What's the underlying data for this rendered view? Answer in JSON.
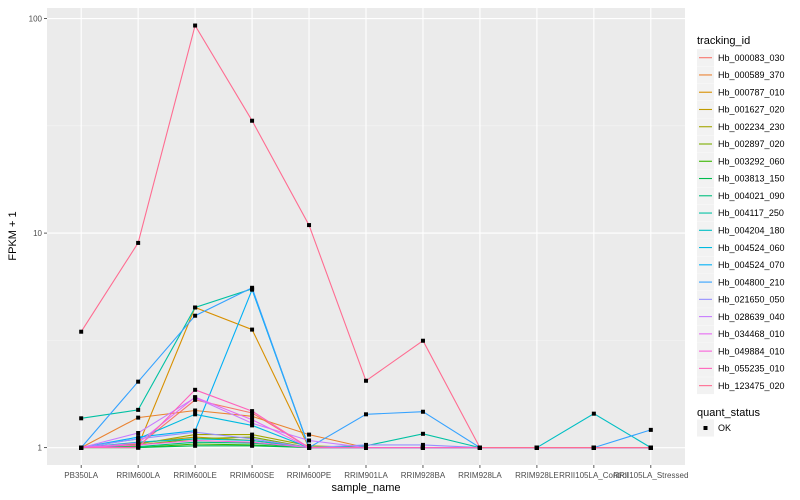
{
  "chart_data": {
    "type": "line",
    "title": "",
    "xlabel": "sample_name",
    "ylabel": "FPKM + 1",
    "yscale": "log10",
    "ylim": [
      0.83,
      112
    ],
    "yticks": [
      1,
      10,
      100
    ],
    "ytick_labels": [
      "1",
      "10",
      "100"
    ],
    "grid": true,
    "legend_position": "right",
    "categories": [
      "PB350LA",
      "RRIM600LA",
      "RRIM600LE",
      "RRIM600SE",
      "RRIM600PE",
      "RRIM901LA",
      "RRIM928BA",
      "RRIM928LA",
      "RRIM928LE",
      "RRII105LA_Control",
      "RRII105LA_Stressed"
    ],
    "legend_title": "tracking_id",
    "series": [
      {
        "name": "Hb_000083_030",
        "color": "#F8766D",
        "values": [
          1,
          1.02,
          1.67,
          1.45,
          1.0,
          1,
          1,
          1,
          1,
          1,
          1
        ]
      },
      {
        "name": "Hb_000589_370",
        "color": "#EA8331",
        "values": [
          1,
          1.38,
          1.49,
          1.4,
          1.15,
          1.0,
          1,
          1,
          1,
          1,
          1
        ]
      },
      {
        "name": "Hb_000787_010",
        "color": "#D89000",
        "values": [
          1,
          1.02,
          4.5,
          3.55,
          1.0,
          1,
          1,
          1,
          1,
          1,
          1
        ]
      },
      {
        "name": "Hb_001627_020",
        "color": "#C09B00",
        "values": [
          1,
          1.05,
          1.12,
          1.08,
          1.0,
          1,
          1,
          1,
          1,
          1,
          1
        ]
      },
      {
        "name": "Hb_002234_230",
        "color": "#A3A500",
        "values": [
          1,
          1.04,
          1.15,
          1.15,
          1.02,
          1,
          1,
          1,
          1,
          1,
          1
        ]
      },
      {
        "name": "Hb_002897_020",
        "color": "#7CAE00",
        "values": [
          1,
          1.03,
          1.1,
          1.12,
          1.0,
          1,
          1,
          1,
          1,
          1,
          1
        ]
      },
      {
        "name": "Hb_003292_060",
        "color": "#39B600",
        "values": [
          1,
          1.0,
          1.04,
          1.03,
          1.0,
          1,
          1,
          1,
          1,
          1,
          1
        ]
      },
      {
        "name": "Hb_003813_150",
        "color": "#00BB4E",
        "values": [
          1,
          1.0,
          1.02,
          1.02,
          1.0,
          1,
          1,
          1,
          1,
          1,
          1
        ]
      },
      {
        "name": "Hb_004021_090",
        "color": "#00BF7D",
        "values": [
          1,
          1.01,
          1.06,
          1.05,
          1.0,
          1,
          1,
          1,
          1,
          1,
          1
        ]
      },
      {
        "name": "Hb_004117_250",
        "color": "#00C1A3",
        "values": [
          1.37,
          1.5,
          4.5,
          5.5,
          1.0,
          1.02,
          1.16,
          1,
          1,
          1,
          1
        ]
      },
      {
        "name": "Hb_004204_180",
        "color": "#00BFC4",
        "values": [
          1,
          1.06,
          1.1,
          1.08,
          1.0,
          1,
          1,
          1,
          1,
          1.44,
          1
        ]
      },
      {
        "name": "Hb_004524_060",
        "color": "#00BAE0",
        "values": [
          1,
          1.1,
          1.43,
          1.27,
          1.0,
          1,
          1,
          1,
          1,
          1,
          1
        ]
      },
      {
        "name": "Hb_004524_070",
        "color": "#00B0F6",
        "values": [
          1,
          1.12,
          1.2,
          5.45,
          1.0,
          1,
          1,
          1,
          1,
          1,
          1
        ]
      },
      {
        "name": "Hb_004800_210",
        "color": "#35A2FF",
        "values": [
          1,
          2.03,
          4.12,
          5.56,
          1.0,
          1.43,
          1.47,
          1,
          1,
          1,
          1.21
        ]
      },
      {
        "name": "Hb_021650_050",
        "color": "#9590FF",
        "values": [
          1,
          1.1,
          1.18,
          1.1,
          1.0,
          1.03,
          1.03,
          1,
          1,
          1,
          1
        ]
      },
      {
        "name": "Hb_028639_040",
        "color": "#C77CFF",
        "values": [
          1,
          1.17,
          1.71,
          1.3,
          1.08,
          1,
          1,
          1,
          1,
          1,
          1
        ]
      },
      {
        "name": "Hb_034468_010",
        "color": "#E76BF3",
        "values": [
          1,
          1.05,
          1.72,
          1.35,
          1.0,
          1,
          1,
          1,
          1,
          1,
          1
        ]
      },
      {
        "name": "Hb_049884_010",
        "color": "#FA62DB",
        "values": [
          1,
          1.03,
          1.08,
          1.06,
          1.0,
          1,
          1,
          1,
          1,
          1,
          1
        ]
      },
      {
        "name": "Hb_055235_010",
        "color": "#FF62BC",
        "values": [
          1,
          1.0,
          1.86,
          1.48,
          1.0,
          1,
          1,
          1,
          1,
          1,
          1
        ]
      },
      {
        "name": "Hb_123475_020",
        "color": "#FF6C91",
        "values": [
          3.47,
          9.0,
          92.8,
          33.4,
          10.9,
          2.05,
          3.15,
          1,
          1,
          1,
          1
        ]
      }
    ],
    "shape_legend_title": "quant_status",
    "shape_legend_items": [
      "OK"
    ]
  }
}
